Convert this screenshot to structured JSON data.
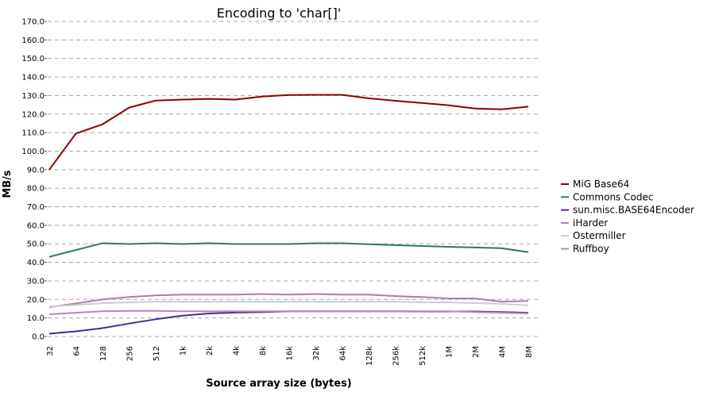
{
  "chart_data": {
    "type": "line",
    "title": "Encoding to 'char[]'",
    "xlabel": "Source array size (bytes)",
    "ylabel": "MB/s",
    "ylim": [
      0,
      170
    ],
    "y_ticks": [
      "0.0",
      "10.0",
      "20.0",
      "30.0",
      "40.0",
      "50.0",
      "60.0",
      "70.0",
      "80.0",
      "90.0",
      "100.0",
      "110.0",
      "120.0",
      "130.0",
      "140.0",
      "150.0",
      "160.0",
      "170.0"
    ],
    "categories": [
      "32",
      "64",
      "128",
      "256",
      "512",
      "1k",
      "2k",
      "4k",
      "8k",
      "16k",
      "32k",
      "64k",
      "128k",
      "256k",
      "512k",
      "1M",
      "2M",
      "4M",
      "8M"
    ],
    "grid": true,
    "legend_position": "right",
    "series": [
      {
        "name": "MiG Base64",
        "color": "#8b0000",
        "values": [
          90.0,
          109.5,
          114.5,
          123.5,
          127.3,
          127.8,
          128.2,
          127.8,
          129.5,
          130.3,
          130.4,
          130.4,
          128.5,
          127.2,
          126.0,
          124.8,
          123.0,
          122.6,
          124.0
        ]
      },
      {
        "name": "Commons Codec",
        "color": "#2e7d4f",
        "values": [
          43.0,
          null,
          50.3,
          49.9,
          50.3,
          49.9,
          50.3,
          49.9,
          49.9,
          49.9,
          50.3,
          50.3,
          49.8,
          49.3,
          48.8,
          48.4,
          48.0,
          47.6,
          45.5
        ]
      },
      {
        "name": "sun.misc.BASE64Encoder",
        "color": "#4b2a8c",
        "values": [
          1.5,
          2.8,
          4.5,
          7.0,
          9.3,
          11.2,
          12.4,
          12.9,
          13.2,
          13.6,
          13.6,
          13.6,
          13.6,
          13.6,
          13.5,
          13.5,
          13.5,
          13.2,
          12.8
        ]
      },
      {
        "name": "iHarder",
        "color": "#b07aa7",
        "values": [
          15.8,
          17.8,
          20.0,
          21.3,
          22.2,
          22.6,
          22.6,
          22.6,
          22.9,
          22.6,
          22.9,
          22.6,
          22.6,
          21.8,
          21.3,
          20.5,
          20.5,
          18.8,
          19.2
        ]
      },
      {
        "name": "Ostermiller",
        "color": "#c8ccd4",
        "values": [
          16.2,
          17.0,
          18.0,
          18.4,
          18.8,
          18.8,
          18.8,
          18.8,
          18.8,
          18.8,
          18.8,
          18.8,
          18.8,
          18.8,
          18.4,
          18.4,
          18.0,
          17.6,
          16.8
        ]
      },
      {
        "name": "Ruffboy",
        "color": "#b784c9",
        "values": [
          12.0,
          12.8,
          13.6,
          13.8,
          13.8,
          13.6,
          13.6,
          13.6,
          13.6,
          13.6,
          13.6,
          13.6,
          13.6,
          13.6,
          13.6,
          13.6,
          13.2,
          12.8,
          12.4
        ]
      }
    ]
  }
}
